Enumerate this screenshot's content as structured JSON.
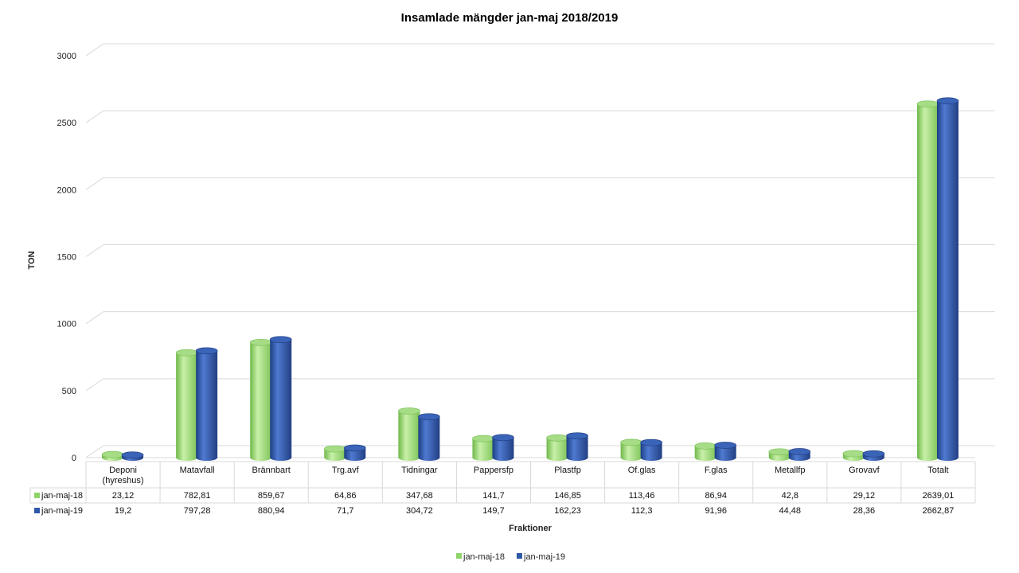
{
  "chart_data": {
    "type": "bar",
    "title": "Insamlade mängder jan-maj 2018/2019",
    "xlabel": "Fraktioner",
    "ylabel": "TON",
    "ylim": [
      0,
      3000
    ],
    "yticks": [
      "0",
      "500",
      "1000",
      "1500",
      "2000",
      "2500",
      "3000"
    ],
    "grid": true,
    "legend_position": "bottom",
    "categories": [
      [
        "Deponi",
        "(hyreshus)"
      ],
      [
        "Matavfall"
      ],
      [
        "Brännbart"
      ],
      [
        "Trg.avf"
      ],
      [
        "Tidningar"
      ],
      [
        "Pappersfp"
      ],
      [
        "Plastfp"
      ],
      [
        "Of.glas"
      ],
      [
        "F.glas"
      ],
      [
        "Metallfp"
      ],
      [
        "Grovavf"
      ],
      [
        "Totalt"
      ]
    ],
    "series": [
      {
        "name": "jan-maj-18",
        "color": "#8fd46a",
        "values": [
          23.12,
          782.81,
          859.67,
          64.86,
          347.68,
          141.7,
          146.85,
          113.46,
          86.94,
          42.8,
          29.12,
          2639.01
        ],
        "labels": [
          "23,12",
          "782,81",
          "859,67",
          "64,86",
          "347,68",
          "141,7",
          "146,85",
          "113,46",
          "86,94",
          "42,8",
          "29,12",
          "2639,01"
        ]
      },
      {
        "name": "jan-maj-19",
        "color": "#2f58a8",
        "values": [
          19.2,
          797.28,
          880.94,
          71.7,
          304.72,
          149.7,
          162.23,
          112.3,
          91.96,
          44.48,
          28.36,
          2662.87
        ],
        "labels": [
          "19,2",
          "797,28",
          "880,94",
          "71,7",
          "304,72",
          "149,7",
          "162,23",
          "112,3",
          "91,96",
          "44,48",
          "28,36",
          "2662,87"
        ]
      }
    ]
  }
}
